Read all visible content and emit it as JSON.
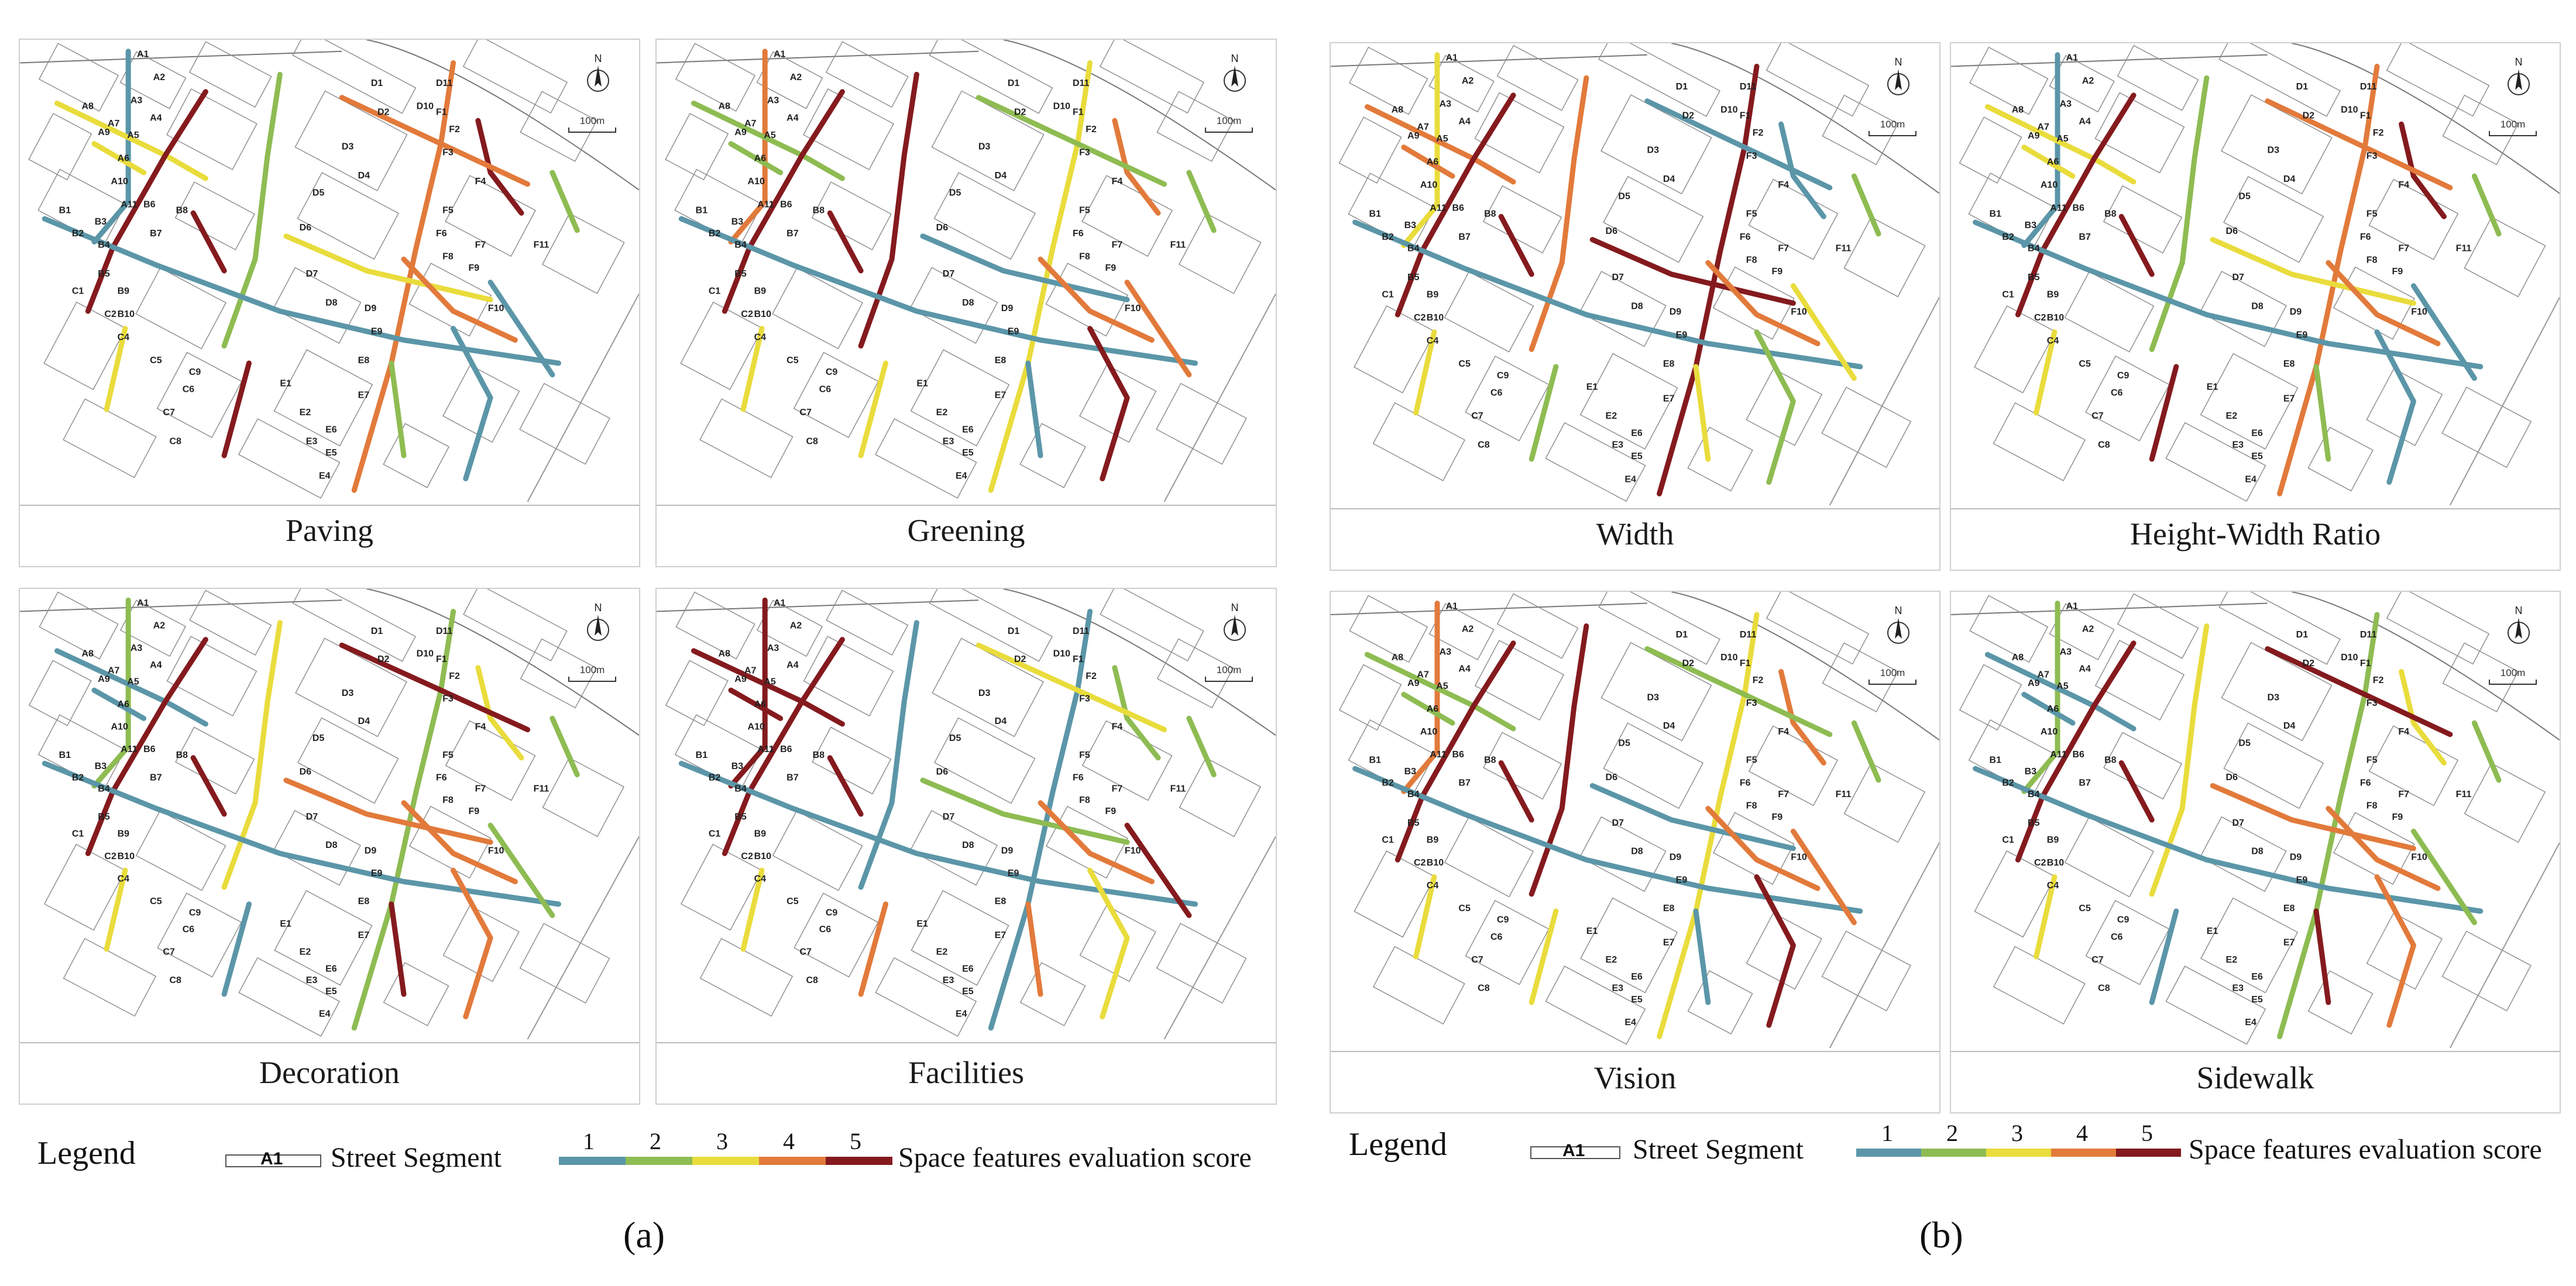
{
  "panels": [
    {
      "title": "Paving",
      "group": "a"
    },
    {
      "title": "Greening",
      "group": "a"
    },
    {
      "title": "Decoration",
      "group": "a"
    },
    {
      "title": "Facilities",
      "group": "a"
    },
    {
      "title": "Width",
      "group": "b"
    },
    {
      "title": "Height-Width Ratio",
      "group": "b"
    },
    {
      "title": "Vision",
      "group": "b"
    },
    {
      "title": "Sidewalk",
      "group": "b"
    }
  ],
  "north_label": "N",
  "scale_label": "100m",
  "legend": {
    "title": "Legend",
    "segment_code": "A1",
    "segment_label": "Street Segment",
    "score_label": "Space features evaluation score",
    "scores": [
      "1",
      "2",
      "3",
      "4",
      "5"
    ],
    "score_colors": [
      "#5b96a8",
      "#8ebc52",
      "#e9dc3c",
      "#e27a3b",
      "#841a1e"
    ]
  },
  "sub_labels": {
    "a": "(a)",
    "b": "(b)"
  },
  "segment_labels": [
    "A1",
    "A2",
    "A3",
    "A4",
    "A5",
    "A6",
    "A7",
    "A8",
    "A9",
    "A10",
    "A11",
    "B1",
    "B2",
    "B3",
    "B4",
    "B5",
    "B6",
    "B7",
    "B8",
    "B9",
    "B10",
    "C1",
    "C2",
    "C4",
    "C5",
    "C6",
    "C7",
    "C8",
    "C9",
    "D1",
    "D2",
    "D3",
    "D4",
    "D5",
    "D6",
    "D7",
    "D8",
    "D9",
    "D10",
    "D11",
    "E1",
    "E2",
    "E3",
    "E4",
    "E5",
    "E6",
    "E7",
    "E8",
    "E9",
    "F1",
    "F2",
    "F3",
    "F4",
    "F5",
    "F6",
    "F7",
    "F8",
    "F9",
    "F10",
    "F11"
  ]
}
